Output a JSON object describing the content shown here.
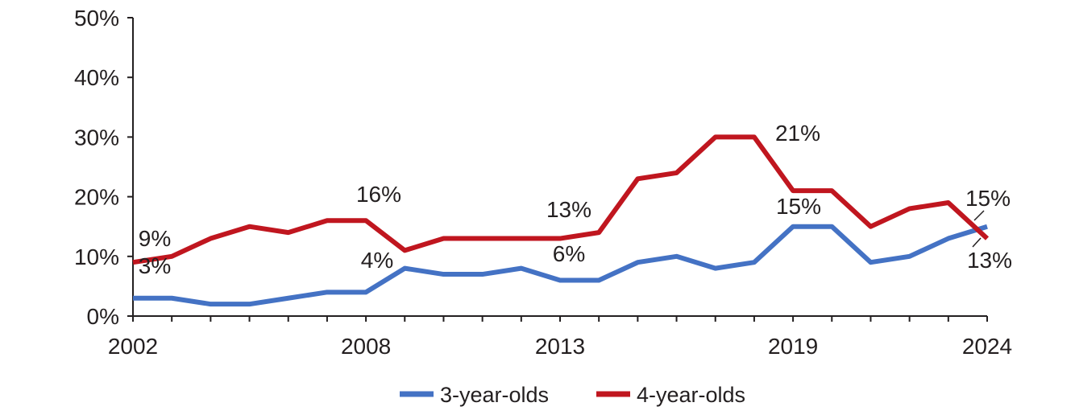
{
  "chart_data": {
    "type": "line",
    "x": [
      2002,
      2003,
      2004,
      2005,
      2006,
      2007,
      2008,
      2009,
      2010,
      2011,
      2012,
      2013,
      2014,
      2015,
      2016,
      2017,
      2018,
      2019,
      2020,
      2021,
      2022,
      2023,
      2024
    ],
    "x_tick_labels": [
      "2002",
      "2008",
      "2013",
      "2019",
      "2024"
    ],
    "y_tick_labels": [
      "0%",
      "10%",
      "20%",
      "30%",
      "40%",
      "50%"
    ],
    "ylim": [
      0,
      50
    ],
    "grid": false,
    "legend_position": "bottom",
    "series": [
      {
        "name": "3-year-olds",
        "color": "#4472c4",
        "values": [
          3,
          3,
          2,
          2,
          3,
          4,
          4,
          8,
          7,
          7,
          8,
          6,
          6,
          9,
          10,
          8,
          9,
          15,
          15,
          9,
          10,
          13,
          15
        ]
      },
      {
        "name": "4-year-olds",
        "color": "#c0161f",
        "values": [
          9,
          10,
          13,
          15,
          14,
          16,
          16,
          11,
          13,
          13,
          13,
          13,
          14,
          23,
          24,
          30,
          30,
          21,
          21,
          15,
          18,
          19,
          13
        ]
      }
    ],
    "annotations": [
      {
        "series": 0,
        "year": 2002,
        "text": "3%"
      },
      {
        "series": 0,
        "year": 2008,
        "text": "4%"
      },
      {
        "series": 0,
        "year": 2013,
        "text": "6%"
      },
      {
        "series": 0,
        "year": 2019,
        "text": "15%"
      },
      {
        "series": 0,
        "year": 2024,
        "text": "15%"
      },
      {
        "series": 1,
        "year": 2002,
        "text": "9%"
      },
      {
        "series": 1,
        "year": 2008,
        "text": "16%"
      },
      {
        "series": 1,
        "year": 2013,
        "text": "13%"
      },
      {
        "series": 1,
        "year": 2019,
        "text": "21%"
      },
      {
        "series": 1,
        "year": 2024,
        "text": "13%"
      }
    ]
  }
}
